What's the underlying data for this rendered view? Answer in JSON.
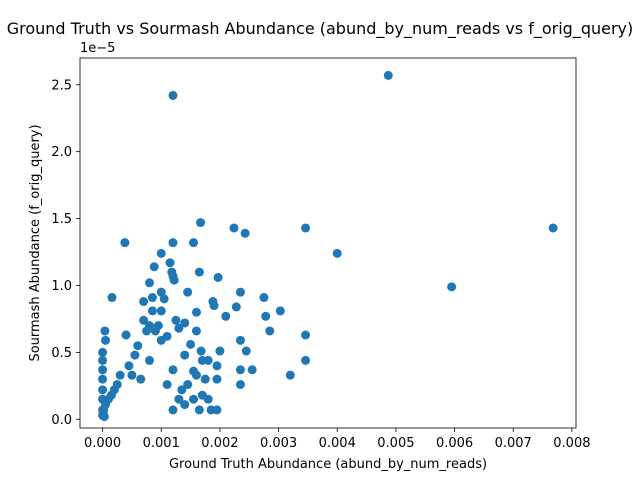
{
  "chart_data": {
    "type": "scatter",
    "title": "Ground Truth vs Sourmash Abundance (abund_by_num_reads vs f_orig_query)",
    "xlabel": "Ground Truth Abundance (abund_by_num_reads)",
    "ylabel": "Sourmash Abundance (f_orig_query)",
    "y_offset_text": "1e−5",
    "xlim": [
      -0.000385,
      0.00807
    ],
    "ylim": [
      -6.5e-07,
      2.7e-05
    ],
    "xticks": [
      0.0,
      0.001,
      0.002,
      0.003,
      0.004,
      0.005,
      0.006,
      0.007,
      0.008
    ],
    "xtick_labels": [
      "0.000",
      "0.001",
      "0.002",
      "0.003",
      "0.004",
      "0.005",
      "0.006",
      "0.007",
      "0.008"
    ],
    "yticks": [
      0,
      5e-06,
      1e-05,
      1.5e-05,
      2e-05,
      2.5e-05
    ],
    "ytick_labels": [
      "0.0",
      "0.5",
      "1.0",
      "1.5",
      "2.0",
      "2.5"
    ],
    "grid": false,
    "marker_color": "#1f77b4",
    "series": [
      {
        "points": [
          [
            0.00487,
            2.57e-05
          ],
          [
            0.0012,
            2.42e-05
          ],
          [
            0.00768,
            1.43e-05
          ],
          [
            0.00346,
            1.43e-05
          ],
          [
            0.00224,
            1.43e-05
          ],
          [
            0.00167,
            1.47e-05
          ],
          [
            0.00243,
            1.39e-05
          ],
          [
            0.00038,
            1.32e-05
          ],
          [
            0.0012,
            1.32e-05
          ],
          [
            0.00155,
            1.32e-05
          ],
          [
            0.004,
            1.24e-05
          ],
          [
            0.001,
            1.24e-05
          ],
          [
            0.00115,
            1.17e-05
          ],
          [
            0.00088,
            1.14e-05
          ],
          [
            0.00118,
            1.1e-05
          ],
          [
            0.0012,
            1.07e-05
          ],
          [
            0.00165,
            1.1e-05
          ],
          [
            0.00197,
            1.06e-05
          ],
          [
            0.00122,
            1.04e-05
          ],
          [
            0.0008,
            1.02e-05
          ],
          [
            0.00595,
            9.9e-06
          ],
          [
            0.001,
            9.5e-06
          ],
          [
            0.00145,
            9.5e-06
          ],
          [
            0.00235,
            9.5e-06
          ],
          [
            0.00016,
            9.1e-06
          ],
          [
            0.00085,
            9.1e-06
          ],
          [
            0.00105,
            9e-06
          ],
          [
            0.00275,
            9.1e-06
          ],
          [
            0.0007,
            8.8e-06
          ],
          [
            0.00188,
            8.8e-06
          ],
          [
            0.0019,
            8.5e-06
          ],
          [
            0.00228,
            8.4e-06
          ],
          [
            0.001,
            8.1e-06
          ],
          [
            0.0016,
            8e-06
          ],
          [
            0.00303,
            8.1e-06
          ],
          [
            0.0021,
            7.7e-06
          ],
          [
            0.00278,
            7.7e-06
          ],
          [
            0.00125,
            7.4e-06
          ],
          [
            0.0014,
            7.2e-06
          ],
          [
            0.0008,
            7e-06
          ],
          [
            0.0013,
            6.8e-06
          ],
          [
            0.0016,
            6.6e-06
          ],
          [
            0.00285,
            6.6e-06
          ],
          [
            4e-05,
            6.6e-06
          ],
          [
            0.0004,
            6.3e-06
          ],
          [
            0.00346,
            6.3e-06
          ],
          [
            0.00235,
            5.9e-06
          ],
          [
            5e-05,
            5.9e-06
          ],
          [
            0.0015,
            5.6e-06
          ],
          [
            0.00245,
            5.1e-06
          ],
          [
            0.002,
            5.1e-06
          ],
          [
            0.00168,
            5.1e-06
          ],
          [
            0.0014,
            4.8e-06
          ],
          [
            0.0017,
            4.4e-06
          ],
          [
            0.00346,
            4.4e-06
          ],
          [
            0.0018,
            4.4e-06
          ],
          [
            0.00195,
            4e-06
          ],
          [
            0.00235,
            3.7e-06
          ],
          [
            0.00255,
            3.7e-06
          ],
          [
            0.0032,
            3.3e-06
          ],
          [
            0.00155,
            3.6e-06
          ],
          [
            0.0016,
            3.3e-06
          ],
          [
            0.00175,
            3e-06
          ],
          [
            0.00195,
            3e-06
          ],
          [
            0.00235,
            2.6e-06
          ],
          [
            0.00145,
            2.6e-06
          ],
          [
            0.00135,
            2.2e-06
          ],
          [
            0.0017,
            1.8e-06
          ],
          [
            0.00155,
            1.5e-06
          ],
          [
            0.0018,
            1.5e-06
          ],
          [
            0.0014,
            1.1e-06
          ],
          [
            0.00165,
            7e-07
          ],
          [
            0.00185,
            7e-07
          ],
          [
            0.00195,
            7e-07
          ],
          [
            0.0012,
            7e-07
          ],
          [
            0.0013,
            1.5e-06
          ],
          [
            0.0011,
            2.6e-06
          ],
          [
            0.0012,
            3.7e-06
          ],
          [
            0.001,
            5.9e-06
          ],
          [
            0.0006,
            5.5e-06
          ],
          [
            0.00075,
            6.6e-06
          ],
          [
            0.0009,
            6.6e-06
          ],
          [
            0.0011,
            6.2e-06
          ],
          [
            0.00095,
            7e-06
          ],
          [
            0.00085,
            8.1e-06
          ],
          [
            0.0007,
            7.4e-06
          ],
          [
            0.00055,
            4.8e-06
          ],
          [
            0.00045,
            4e-06
          ],
          [
            0.0005,
            3.3e-06
          ],
          [
            0.00065,
            3e-06
          ],
          [
            0.0008,
            4.4e-06
          ],
          [
            0.0003,
            3.3e-06
          ],
          [
            0.00025,
            2.6e-06
          ],
          [
            0.0002,
            2.2e-06
          ],
          [
            0.00015,
            1.8e-06
          ],
          [
            0.0001,
            1.5e-06
          ],
          [
            5e-05,
            1.1e-06
          ],
          [
            2e-05,
            7e-07
          ],
          [
            1e-05,
            4e-07
          ],
          [
            3e-05,
            2e-07
          ],
          [
            0.0,
            5e-06
          ],
          [
            0.0,
            4.4e-06
          ],
          [
            0.0,
            3.7e-06
          ],
          [
            0.0,
            3e-06
          ],
          [
            0.0,
            2.2e-06
          ],
          [
            0.0,
            1.5e-06
          ],
          [
            0.0,
            7e-07
          ],
          [
            0.0,
            3e-07
          ]
        ]
      }
    ]
  }
}
